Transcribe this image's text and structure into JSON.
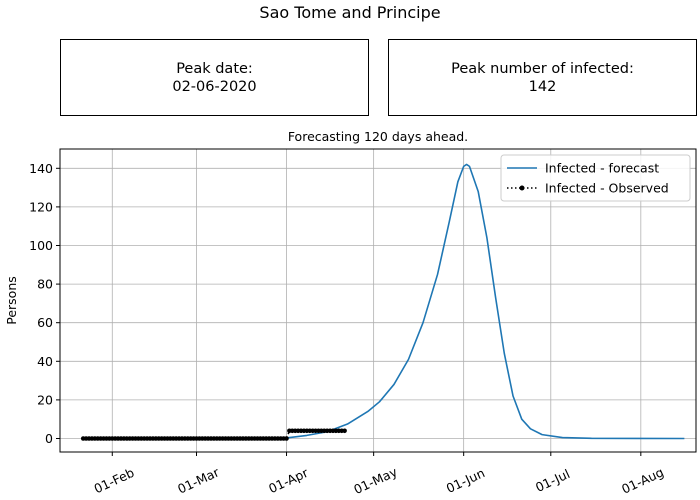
{
  "suptitle": "Sao Tome and Principe",
  "summary_boxes": [
    {
      "label": "Peak date:",
      "value": "02-06-2020"
    },
    {
      "label": "Peak number of infected:",
      "value": "142"
    }
  ],
  "chart_data": {
    "type": "line",
    "title": "Forecasting 120 days ahead.",
    "xlabel": "",
    "ylabel": "Persons",
    "x_axis": "date",
    "xlim": [
      "2020-01-14",
      "2020-08-20"
    ],
    "ylim": [
      -7,
      150
    ],
    "x_ticks": [
      {
        "date": "2020-02-01",
        "label": "01-Feb"
      },
      {
        "date": "2020-03-01",
        "label": "01-Mar"
      },
      {
        "date": "2020-04-01",
        "label": "01-Apr"
      },
      {
        "date": "2020-05-01",
        "label": "01-May"
      },
      {
        "date": "2020-06-01",
        "label": "01-Jun"
      },
      {
        "date": "2020-07-01",
        "label": "01-Jul"
      },
      {
        "date": "2020-08-01",
        "label": "01-Aug"
      }
    ],
    "y_ticks": [
      0,
      20,
      40,
      60,
      80,
      100,
      120,
      140
    ],
    "grid": true,
    "legend_position": "top-right",
    "series": [
      {
        "name": "Infected - forecast",
        "style": "solid",
        "color": "#1f77b4",
        "points": [
          [
            "2020-04-01",
            0.3
          ],
          [
            "2020-04-08",
            1.6
          ],
          [
            "2020-04-15",
            3.5
          ],
          [
            "2020-04-22",
            7.5
          ],
          [
            "2020-04-29",
            14
          ],
          [
            "2020-05-03",
            19
          ],
          [
            "2020-05-08",
            28
          ],
          [
            "2020-05-13",
            41
          ],
          [
            "2020-05-18",
            60
          ],
          [
            "2020-05-23",
            85
          ],
          [
            "2020-05-27",
            112
          ],
          [
            "2020-05-30",
            133
          ],
          [
            "2020-06-01",
            141
          ],
          [
            "2020-06-02",
            142
          ],
          [
            "2020-06-03",
            141
          ],
          [
            "2020-06-06",
            128
          ],
          [
            "2020-06-09",
            104
          ],
          [
            "2020-06-12",
            73
          ],
          [
            "2020-06-15",
            44
          ],
          [
            "2020-06-18",
            22
          ],
          [
            "2020-06-21",
            10
          ],
          [
            "2020-06-24",
            5
          ],
          [
            "2020-06-28",
            2
          ],
          [
            "2020-07-05",
            0.5
          ],
          [
            "2020-07-15",
            0.1
          ],
          [
            "2020-08-16",
            0
          ]
        ]
      },
      {
        "name": "Infected - Observed",
        "style": "dotted",
        "marker": "circle",
        "color": "#000000",
        "start": "2020-01-22",
        "values": [
          0,
          0,
          0,
          0,
          0,
          0,
          0,
          0,
          0,
          0,
          0,
          0,
          0,
          0,
          0,
          0,
          0,
          0,
          0,
          0,
          0,
          0,
          0,
          0,
          0,
          0,
          0,
          0,
          0,
          0,
          0,
          0,
          0,
          0,
          0,
          0,
          0,
          0,
          0,
          0,
          0,
          0,
          0,
          0,
          0,
          0,
          0,
          0,
          0,
          0,
          0,
          0,
          0,
          0,
          0,
          0,
          0,
          0,
          0,
          0,
          0,
          0,
          0,
          0,
          0,
          0,
          0,
          0,
          0,
          0,
          0,
          4,
          4,
          4,
          4,
          4,
          4,
          4,
          4,
          4,
          4,
          4,
          4,
          4,
          4,
          4,
          4,
          4,
          4,
          4,
          4
        ]
      }
    ]
  }
}
